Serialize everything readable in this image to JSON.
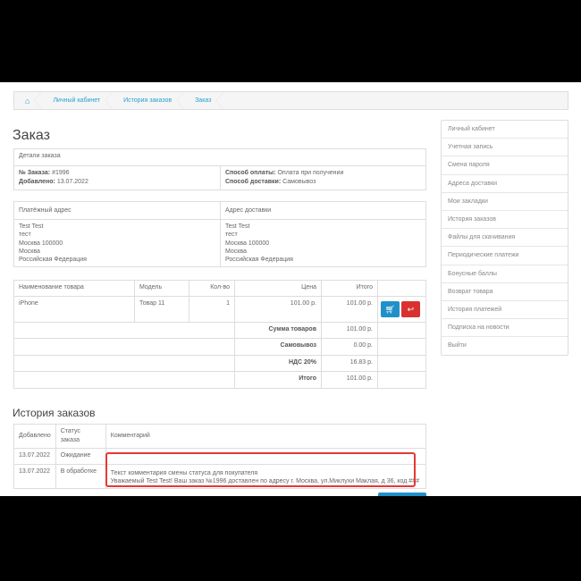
{
  "breadcrumb": [
    "Личный кабинет",
    "История заказов",
    "Заказ"
  ],
  "title": "Заказ",
  "details": {
    "header": "Детали заказа",
    "order_no_label": "№ Заказа:",
    "order_no": "#1996",
    "added_label": "Добавлено:",
    "added": "13.07.2022",
    "payment_label": "Способ оплаты:",
    "payment": "Оплата при получении",
    "shipping_label": "Способ доставки:",
    "shipping": "Самовывоз"
  },
  "addresses": {
    "payment_header": "Платёжный адрес",
    "shipping_header": "Адрес доставки",
    "payment": [
      "Test Test",
      "тест",
      "Москва 100000",
      "Москва",
      "Российская Федерация"
    ],
    "shipping": [
      "Test Test",
      "тест",
      "Москва 100000",
      "Москва",
      "Российская Федерация"
    ]
  },
  "products": {
    "headers": [
      "Наименование товара",
      "Модель",
      "Кол-во",
      "Цена",
      "Итого"
    ],
    "rows": [
      {
        "name": "iPhone",
        "model": "Товар 11",
        "qty": "1",
        "price": "101.00 р.",
        "total": "101.00 р."
      }
    ],
    "totals": [
      {
        "label": "Сумма товаров",
        "value": "101.00 р."
      },
      {
        "label": "Самовывоз",
        "value": "0.00 р."
      },
      {
        "label": "НДС 20%",
        "value": "16.83 р."
      },
      {
        "label": "Итого",
        "value": "101.00 р."
      }
    ]
  },
  "history": {
    "title": "История заказов",
    "headers": [
      "Добавлено",
      "Статус заказа",
      "Комментарий"
    ],
    "rows": [
      {
        "date": "13.07.2022",
        "status": "Ожидание",
        "comment1": "",
        "comment2": ""
      },
      {
        "date": "13.07.2022",
        "status": "В обработке",
        "comment1": "Текст комментария смены статуса для покупателя",
        "comment2": "Уважаемый Test Test! Ваш заказ №1996 доставлен по адресу г. Москва, ул.Миклухи Маклая, д 36, код ###"
      }
    ]
  },
  "sidebar": [
    "Личный кабинет",
    "Учетная запись",
    "Смена пароля",
    "Адреса доставки",
    "Мои закладки",
    "История заказов",
    "Файлы для скачивания",
    "Периодические платежи",
    "Бонусные баллы",
    "Возврат товара",
    "История платежей",
    "Подписка на новости",
    "Выйти"
  ],
  "colors": {
    "link": "#23a1d1",
    "reorder": "#1f90c8",
    "return": "#d9322e",
    "highlight": "#e53935"
  }
}
